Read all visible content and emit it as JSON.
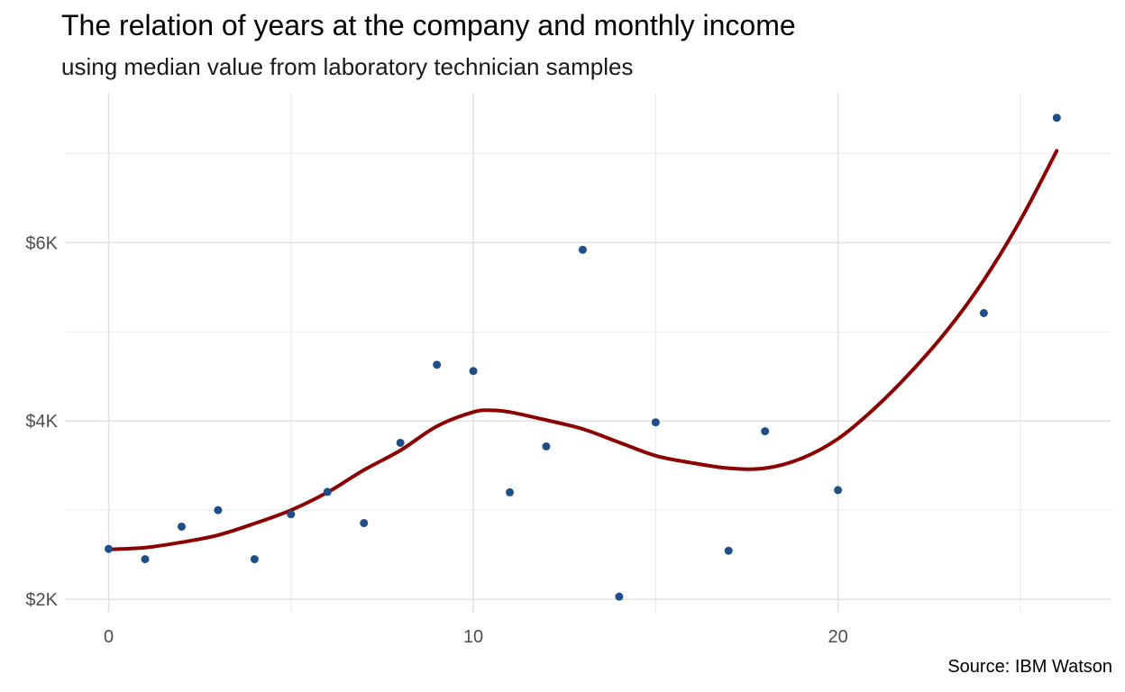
{
  "chart_data": {
    "type": "scatter",
    "title": "The relation of years at the company and monthly income",
    "subtitle": "using median value from laboratory technician samples",
    "caption": "Source: IBM Watson",
    "xlabel": "",
    "ylabel": "",
    "xlim": [
      -1.2,
      27.5
    ],
    "ylim": [
      1850,
      7680
    ],
    "x_ticks": [
      0,
      10,
      20
    ],
    "x_tick_labels": [
      "0",
      "10",
      "20"
    ],
    "y_ticks": [
      2000,
      4000,
      6000
    ],
    "y_tick_labels": [
      "$2K",
      "$4K",
      "$6K"
    ],
    "grid": true,
    "legend": "none",
    "points": [
      {
        "x": 0,
        "y": 2565
      },
      {
        "x": 1,
        "y": 2450
      },
      {
        "x": 2,
        "y": 2815
      },
      {
        "x": 3,
        "y": 3000
      },
      {
        "x": 4,
        "y": 2450
      },
      {
        "x": 5,
        "y": 2955
      },
      {
        "x": 6,
        "y": 3205
      },
      {
        "x": 7,
        "y": 2855
      },
      {
        "x": 8,
        "y": 3755
      },
      {
        "x": 9,
        "y": 4630
      },
      {
        "x": 10,
        "y": 4560
      },
      {
        "x": 11,
        "y": 3200
      },
      {
        "x": 12,
        "y": 3715
      },
      {
        "x": 13,
        "y": 5920
      },
      {
        "x": 14,
        "y": 2030
      },
      {
        "x": 15,
        "y": 3985
      },
      {
        "x": 17,
        "y": 2545
      },
      {
        "x": 18,
        "y": 3885
      },
      {
        "x": 20,
        "y": 3225
      },
      {
        "x": 24,
        "y": 5210
      },
      {
        "x": 26,
        "y": 7400
      }
    ],
    "smooth_line": [
      {
        "x": 0,
        "y": 2560
      },
      {
        "x": 1,
        "y": 2580
      },
      {
        "x": 2,
        "y": 2640
      },
      {
        "x": 3,
        "y": 2720
      },
      {
        "x": 4,
        "y": 2850
      },
      {
        "x": 5,
        "y": 3000
      },
      {
        "x": 6,
        "y": 3200
      },
      {
        "x": 7,
        "y": 3450
      },
      {
        "x": 8,
        "y": 3670
      },
      {
        "x": 9,
        "y": 3940
      },
      {
        "x": 10,
        "y": 4100
      },
      {
        "x": 10.5,
        "y": 4120
      },
      {
        "x": 11,
        "y": 4100
      },
      {
        "x": 12,
        "y": 4010
      },
      {
        "x": 13,
        "y": 3910
      },
      {
        "x": 14,
        "y": 3760
      },
      {
        "x": 15,
        "y": 3610
      },
      {
        "x": 16,
        "y": 3530
      },
      {
        "x": 17,
        "y": 3470
      },
      {
        "x": 18,
        "y": 3470
      },
      {
        "x": 19,
        "y": 3580
      },
      {
        "x": 20,
        "y": 3800
      },
      {
        "x": 21,
        "y": 4140
      },
      {
        "x": 22,
        "y": 4550
      },
      {
        "x": 23,
        "y": 5020
      },
      {
        "x": 24,
        "y": 5580
      },
      {
        "x": 25,
        "y": 6250
      },
      {
        "x": 26,
        "y": 7030
      }
    ],
    "point_color": "#1f4f8a",
    "line_color": "#8b0000"
  }
}
